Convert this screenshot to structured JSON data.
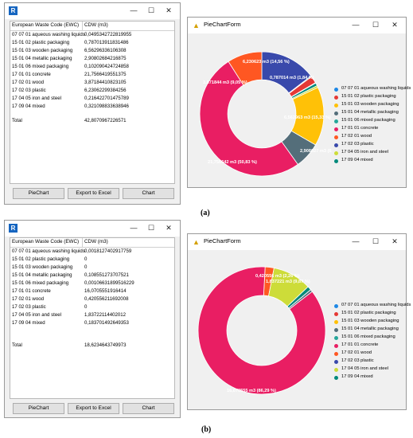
{
  "panels": [
    {
      "caption": "(a)",
      "grid": {
        "col1_header": "European Waste Code (EWC)",
        "col2_header": "CDW (m3)",
        "rows": [
          {
            "code": "07 07 01 aqueous washing liquids",
            "value": "0,0495342722819955"
          },
          {
            "code": "15 01 02 plastic packaging",
            "value": "0,787013911831486"
          },
          {
            "code": "15 01 03 wooden packaging",
            "value": "6,56296336106308"
          },
          {
            "code": "15 01 04 metallic packaging",
            "value": "2,90802684216875"
          },
          {
            "code": "15 01 06 mixed packaging",
            "value": "0,102090424724858"
          },
          {
            "code": "17 01 01 concrete",
            "value": "21,7566419551375"
          },
          {
            "code": "17 02 01 wood",
            "value": "3,87184410823105"
          },
          {
            "code": "17 02 03 plastic",
            "value": "6,23062299384256"
          },
          {
            "code": "17 04 05 iron and steel",
            "value": "0,216422701475789"
          },
          {
            "code": "17 09 04 mixed",
            "value": "0,321098833638946"
          }
        ],
        "total_label": "Total",
        "total_value": "42,8070967226571"
      },
      "buttons": {
        "piechart": "PieChart",
        "export": "Export to Excel",
        "chart": "Chart"
      },
      "chart_window_title": "PieChartForm",
      "labels": [
        {
          "text": "21,756642 m3  (50,83 %)"
        },
        {
          "text": "3,871844 m3  (9,05 %)"
        },
        {
          "text": "6,230623 m3  (14,56 %)"
        },
        {
          "text": "0,787014 m3  (1,84 %)"
        },
        {
          "text": "6,562963 m3  (15,33 %)"
        },
        {
          "text": "2,908027 m3  (6,79 %)"
        }
      ]
    },
    {
      "caption": "(b)",
      "grid": {
        "col1_header": "European Waste Code (EWC)",
        "col2_header": "CDW (m3)",
        "rows": [
          {
            "code": "07 07 01 aqueous washing liquids",
            "value": "0,0018127402917759"
          },
          {
            "code": "15 01 02 plastic packaging",
            "value": "0"
          },
          {
            "code": "15 01 03 wooden packaging",
            "value": "0"
          },
          {
            "code": "15 01 04 metallic packaging",
            "value": "0,108551273707521"
          },
          {
            "code": "15 01 06 mixed packaging",
            "value": "0,00106631899516229"
          },
          {
            "code": "17 01 01 concrete",
            "value": "16,0705551916414"
          },
          {
            "code": "17 02 01 wood",
            "value": "0,420556211692008"
          },
          {
            "code": "17 02 03 plastic",
            "value": "0"
          },
          {
            "code": "17 04 05 iron and steel",
            "value": "1,83722114402012"
          },
          {
            "code": "17 09 04 mixed",
            "value": "0,183701492649353"
          }
        ],
        "total_label": "Total",
        "total_value": "18,6234643749973"
      },
      "buttons": {
        "piechart": "PieChart",
        "export": "Export to Excel",
        "chart": "Chart"
      },
      "chart_window_title": "PieChartForm",
      "labels": [
        {
          "text": "16,070555 m3  (86,29 %)"
        },
        {
          "text": "0,420556 m3  (2,26 %)"
        },
        {
          "text": "1,837221 m3  (9,87 %)"
        }
      ]
    }
  ],
  "legend": [
    {
      "label": "07 07 01 aqueous washing liquids",
      "color": "#1e88e5"
    },
    {
      "label": "15 01 02 plastic packaging",
      "color": "#e53935"
    },
    {
      "label": "15 01 03 wooden packaging",
      "color": "#ffc107"
    },
    {
      "label": "15 01 04 metallic packaging",
      "color": "#546e7a"
    },
    {
      "label": "15 01 06 mixed packaging",
      "color": "#26a69a"
    },
    {
      "label": "17 01 01 concrete",
      "color": "#e91e63"
    },
    {
      "label": "17 02 01 wood",
      "color": "#ff5722"
    },
    {
      "label": "17 02 03 plastic",
      "color": "#3949ab"
    },
    {
      "label": "17 04 05 iron and steel",
      "color": "#cddc39"
    },
    {
      "label": "17 09 04 mixed",
      "color": "#00897b"
    }
  ],
  "icons": {
    "app": "revit-r-icon",
    "chart": "warning-triangle-icon",
    "minimize": "—",
    "maximize": "☐",
    "close": "✕"
  },
  "chart_data": [
    {
      "type": "pie",
      "title": "",
      "categories": [
        "07 07 01 aqueous washing liquids",
        "15 01 02 plastic packaging",
        "15 01 03 wooden packaging",
        "15 01 04 metallic packaging",
        "15 01 06 mixed packaging",
        "17 01 01 concrete",
        "17 02 01 wood",
        "17 02 03 plastic",
        "17 04 05 iron and steel",
        "17 09 04 mixed"
      ],
      "values": [
        0.0495,
        0.787,
        6.563,
        2.908,
        0.1021,
        21.7566,
        3.8718,
        6.2306,
        0.2164,
        0.3211
      ],
      "colors": [
        "#1e88e5",
        "#e53935",
        "#ffc107",
        "#546e7a",
        "#26a69a",
        "#e91e63",
        "#ff5722",
        "#3949ab",
        "#cddc39",
        "#00897b"
      ],
      "order": [
        7,
        4,
        1,
        0,
        9,
        8,
        2,
        3,
        5,
        6
      ],
      "start_angle_deg": 0,
      "legend": "right",
      "inner_radius_ratio": 0.55
    },
    {
      "type": "pie",
      "title": "",
      "categories": [
        "07 07 01 aqueous washing liquids",
        "15 01 02 plastic packaging",
        "15 01 03 wooden packaging",
        "15 01 04 metallic packaging",
        "15 01 06 mixed packaging",
        "17 01 01 concrete",
        "17 02 01 wood",
        "17 02 03 plastic",
        "17 04 05 iron and steel",
        "17 09 04 mixed"
      ],
      "values": [
        0.0018,
        0,
        0,
        0.1086,
        0.0011,
        16.0706,
        0.4206,
        0,
        1.8372,
        0.1837
      ],
      "colors": [
        "#1e88e5",
        "#e53935",
        "#ffc107",
        "#546e7a",
        "#26a69a",
        "#e91e63",
        "#ff5722",
        "#3949ab",
        "#cddc39",
        "#00897b"
      ],
      "order": [
        6,
        8,
        9,
        0,
        4,
        3,
        5
      ],
      "start_angle_deg": 3,
      "legend": "right",
      "inner_radius_ratio": 0.55
    }
  ]
}
